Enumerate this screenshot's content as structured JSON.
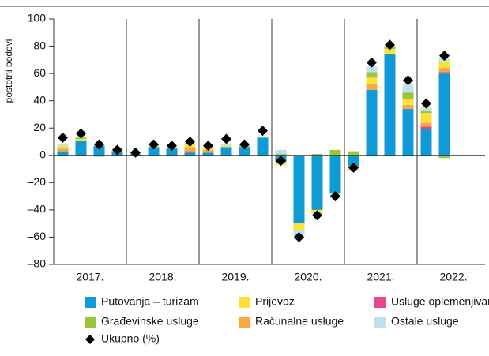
{
  "chart_data": {
    "type": "bar",
    "stacked": true,
    "ylabel": "postotni bodovi",
    "groups": [
      "2017.",
      "2018.",
      "2019.",
      "2020.",
      "2021.",
      "2022."
    ],
    "categories": [
      null,
      null,
      null,
      null,
      null,
      null,
      null,
      null,
      null,
      null,
      null,
      null,
      null,
      null,
      null,
      null,
      null,
      null,
      null,
      null,
      null,
      null
    ],
    "series": [
      {
        "name": "Putovanja – turizam",
        "color": "#109bd7",
        "values": [
          3,
          11,
          7,
          3,
          1,
          6,
          5,
          2,
          2,
          6,
          6,
          13,
          -5,
          -50,
          -40,
          -28,
          -8,
          48,
          74,
          34,
          19,
          60
        ]
      },
      {
        "name": "Usluge oplemenjivanja",
        "color": "#e8458b",
        "values": [
          0,
          0,
          0,
          0,
          0,
          0,
          0,
          1,
          0,
          0,
          0,
          0,
          0,
          0,
          0,
          0,
          0,
          0,
          0,
          0,
          2,
          1
        ]
      },
      {
        "name": "Računalne usluge",
        "color": "#f7a941",
        "values": [
          2,
          0,
          0,
          0,
          0,
          0,
          0,
          3,
          2,
          0,
          0,
          0,
          0,
          0,
          0,
          0,
          0,
          4,
          0,
          3,
          3,
          3
        ]
      },
      {
        "name": "Prijevoz",
        "color": "#fde13a",
        "values": [
          2,
          1,
          0,
          1,
          0,
          1,
          1,
          3,
          2,
          1,
          0,
          1,
          -2,
          -5,
          -3,
          0,
          -3,
          5,
          4,
          4,
          7,
          5
        ]
      },
      {
        "name": "Građevinske usluge",
        "color": "#9bc43f",
        "values": [
          0,
          1,
          -1,
          0,
          0,
          0,
          0,
          0,
          0,
          0,
          1,
          0,
          1,
          0,
          1,
          4,
          3,
          4,
          2,
          5,
          2,
          -2
        ]
      },
      {
        "name": "Ostale usluge",
        "color": "#bde3ea",
        "values": [
          1,
          0,
          0,
          0,
          0,
          1,
          0,
          0,
          0,
          1,
          0,
          0,
          3,
          -5,
          0,
          -3,
          0,
          4,
          0,
          6,
          2,
          2
        ]
      }
    ],
    "total": {
      "name": "Ukupno (%)",
      "color": "#000000",
      "values": [
        13,
        16,
        8,
        4,
        2,
        8,
        7,
        10,
        7,
        12,
        8,
        18,
        -4,
        -60,
        -44,
        -30,
        -9,
        68,
        81,
        55,
        38,
        73
      ]
    },
    "ylim": [
      -80,
      100
    ],
    "yticks": [
      {
        "value": -80,
        "label": "–80"
      },
      {
        "value": -60,
        "label": "–60"
      },
      {
        "value": -40,
        "label": "–40"
      },
      {
        "value": -20,
        "label": "–20"
      },
      0,
      20,
      40,
      60,
      80,
      100
    ]
  }
}
